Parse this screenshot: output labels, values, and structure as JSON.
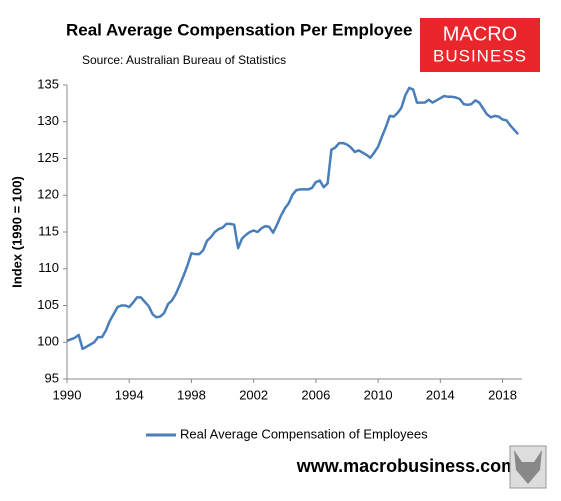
{
  "chart_data": {
    "type": "line",
    "title": "Real Average Compensation Per Employee",
    "subtitle": "Source: Australian Bureau of Statistics",
    "ylabel": "Index (1990 = 100)",
    "x": [
      1990.0,
      1990.5,
      1990.75,
      1991.0,
      1991.5,
      1991.75,
      1992.0,
      1992.25,
      1992.5,
      1992.75,
      1993.25,
      1993.5,
      1993.75,
      1994.0,
      1994.25,
      1994.5,
      1994.75,
      1995.0,
      1995.25,
      1995.5,
      1995.75,
      1996.0,
      1996.25,
      1996.5,
      1996.75,
      1997.0,
      1997.25,
      1997.5,
      1997.75,
      1998.0,
      1998.25,
      1998.5,
      1998.75,
      1999.0,
      1999.25,
      1999.5,
      1999.75,
      2000.0,
      2000.25,
      2000.5,
      2000.75,
      2001.0,
      2001.25,
      2001.5,
      2001.75,
      2002.0,
      2002.25,
      2002.5,
      2002.75,
      2003.0,
      2003.25,
      2003.5,
      2003.75,
      2004.0,
      2004.25,
      2004.5,
      2004.75,
      2005.0,
      2005.5,
      2005.75,
      2006.0,
      2006.25,
      2006.5,
      2006.75,
      2007.0,
      2007.25,
      2007.5,
      2007.75,
      2008.0,
      2008.25,
      2008.5,
      2008.75,
      2009.0,
      2009.25,
      2009.5,
      2009.75,
      2010.0,
      2010.25,
      2010.5,
      2010.75,
      2011.0,
      2011.25,
      2011.5,
      2011.75,
      2012.0,
      2012.25,
      2012.5,
      2012.75,
      2013.0,
      2013.25,
      2013.5,
      2013.75,
      2014.0,
      2014.25,
      2014.5,
      2014.75,
      2015.0,
      2015.25,
      2015.5,
      2015.75,
      2016.0,
      2016.25,
      2016.5,
      2016.75,
      2017.0,
      2017.25,
      2017.5,
      2017.75,
      2018.0,
      2018.25,
      2018.5,
      2018.75,
      2019.0
    ],
    "series": [
      {
        "name": "Real Average Compensation of Employees",
        "color": "#4a7ebb",
        "values": [
          100.2,
          100.6,
          101.0,
          99.1,
          99.7,
          100.0,
          100.7,
          100.7,
          101.6,
          102.9,
          104.8,
          105.0,
          105.0,
          104.8,
          105.4,
          106.1,
          106.1,
          105.5,
          104.9,
          103.8,
          103.4,
          103.5,
          104.0,
          105.2,
          105.7,
          106.6,
          107.8,
          109.1,
          110.5,
          112.1,
          112.0,
          112.0,
          112.5,
          113.8,
          114.3,
          115.0,
          115.4,
          115.6,
          116.1,
          116.1,
          116.0,
          112.8,
          114.1,
          114.6,
          115.0,
          115.2,
          115.0,
          115.5,
          115.8,
          115.7,
          114.9,
          116.0,
          117.2,
          118.2,
          118.9,
          120.1,
          120.7,
          120.8,
          120.8,
          121.0,
          121.8,
          122.0,
          121.1,
          121.6,
          126.2,
          126.5,
          127.1,
          127.1,
          126.9,
          126.5,
          125.9,
          126.1,
          125.8,
          125.5,
          125.1,
          125.8,
          126.6,
          128.0,
          129.3,
          130.8,
          130.7,
          131.2,
          131.9,
          133.6,
          134.6,
          134.4,
          132.6,
          132.6,
          132.6,
          133.0,
          132.6,
          132.9,
          133.2,
          133.5,
          133.4,
          133.4,
          133.3,
          133.1,
          132.4,
          132.3,
          132.4,
          132.9,
          132.6,
          131.8,
          131.0,
          130.6,
          130.8,
          130.7,
          130.3,
          130.2,
          129.5,
          128.9,
          128.3
        ]
      }
    ],
    "xlim": [
      1990,
      2019.25
    ],
    "xticks": [
      1990,
      1994,
      1998,
      2002,
      2006,
      2010,
      2014,
      2018
    ],
    "ylim": [
      95,
      135
    ],
    "yticks": [
      95,
      100,
      105,
      110,
      115,
      120,
      125,
      130,
      135
    ],
    "legend": "bottom"
  },
  "logo": {
    "line1": "MACRO",
    "line2": "BUSINESS"
  },
  "footer": "www.macrobusiness.com.au"
}
